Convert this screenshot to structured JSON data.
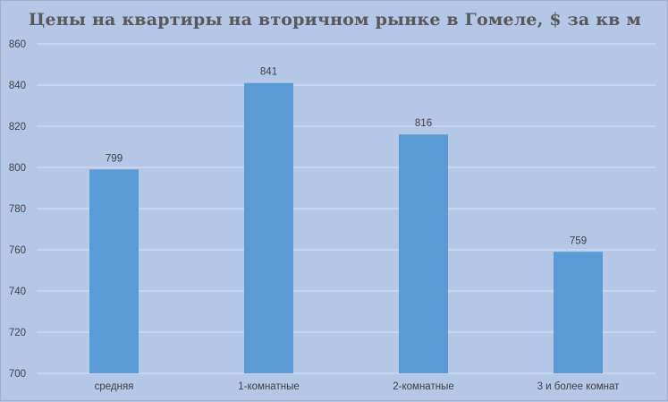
{
  "chart_data": {
    "type": "bar",
    "title": "Цены на квартиры на вторичном рынке в Гомеле, $ за кв м",
    "xlabel": "",
    "ylabel": "",
    "categories": [
      "средняя",
      "1-комнатные",
      "2-комнатные",
      "3 и более комнат"
    ],
    "values": [
      799,
      841,
      816,
      759
    ],
    "data_labels": [
      "799",
      "841",
      "816",
      "759"
    ],
    "ylim": [
      700,
      860
    ],
    "yticks": [
      700,
      720,
      740,
      760,
      780,
      800,
      820,
      840,
      860
    ],
    "grid": true,
    "legend": "none",
    "colors": {
      "bar": "#5b9bd5",
      "background": "#b4c7e7",
      "grid": "#d9e2f1"
    }
  }
}
